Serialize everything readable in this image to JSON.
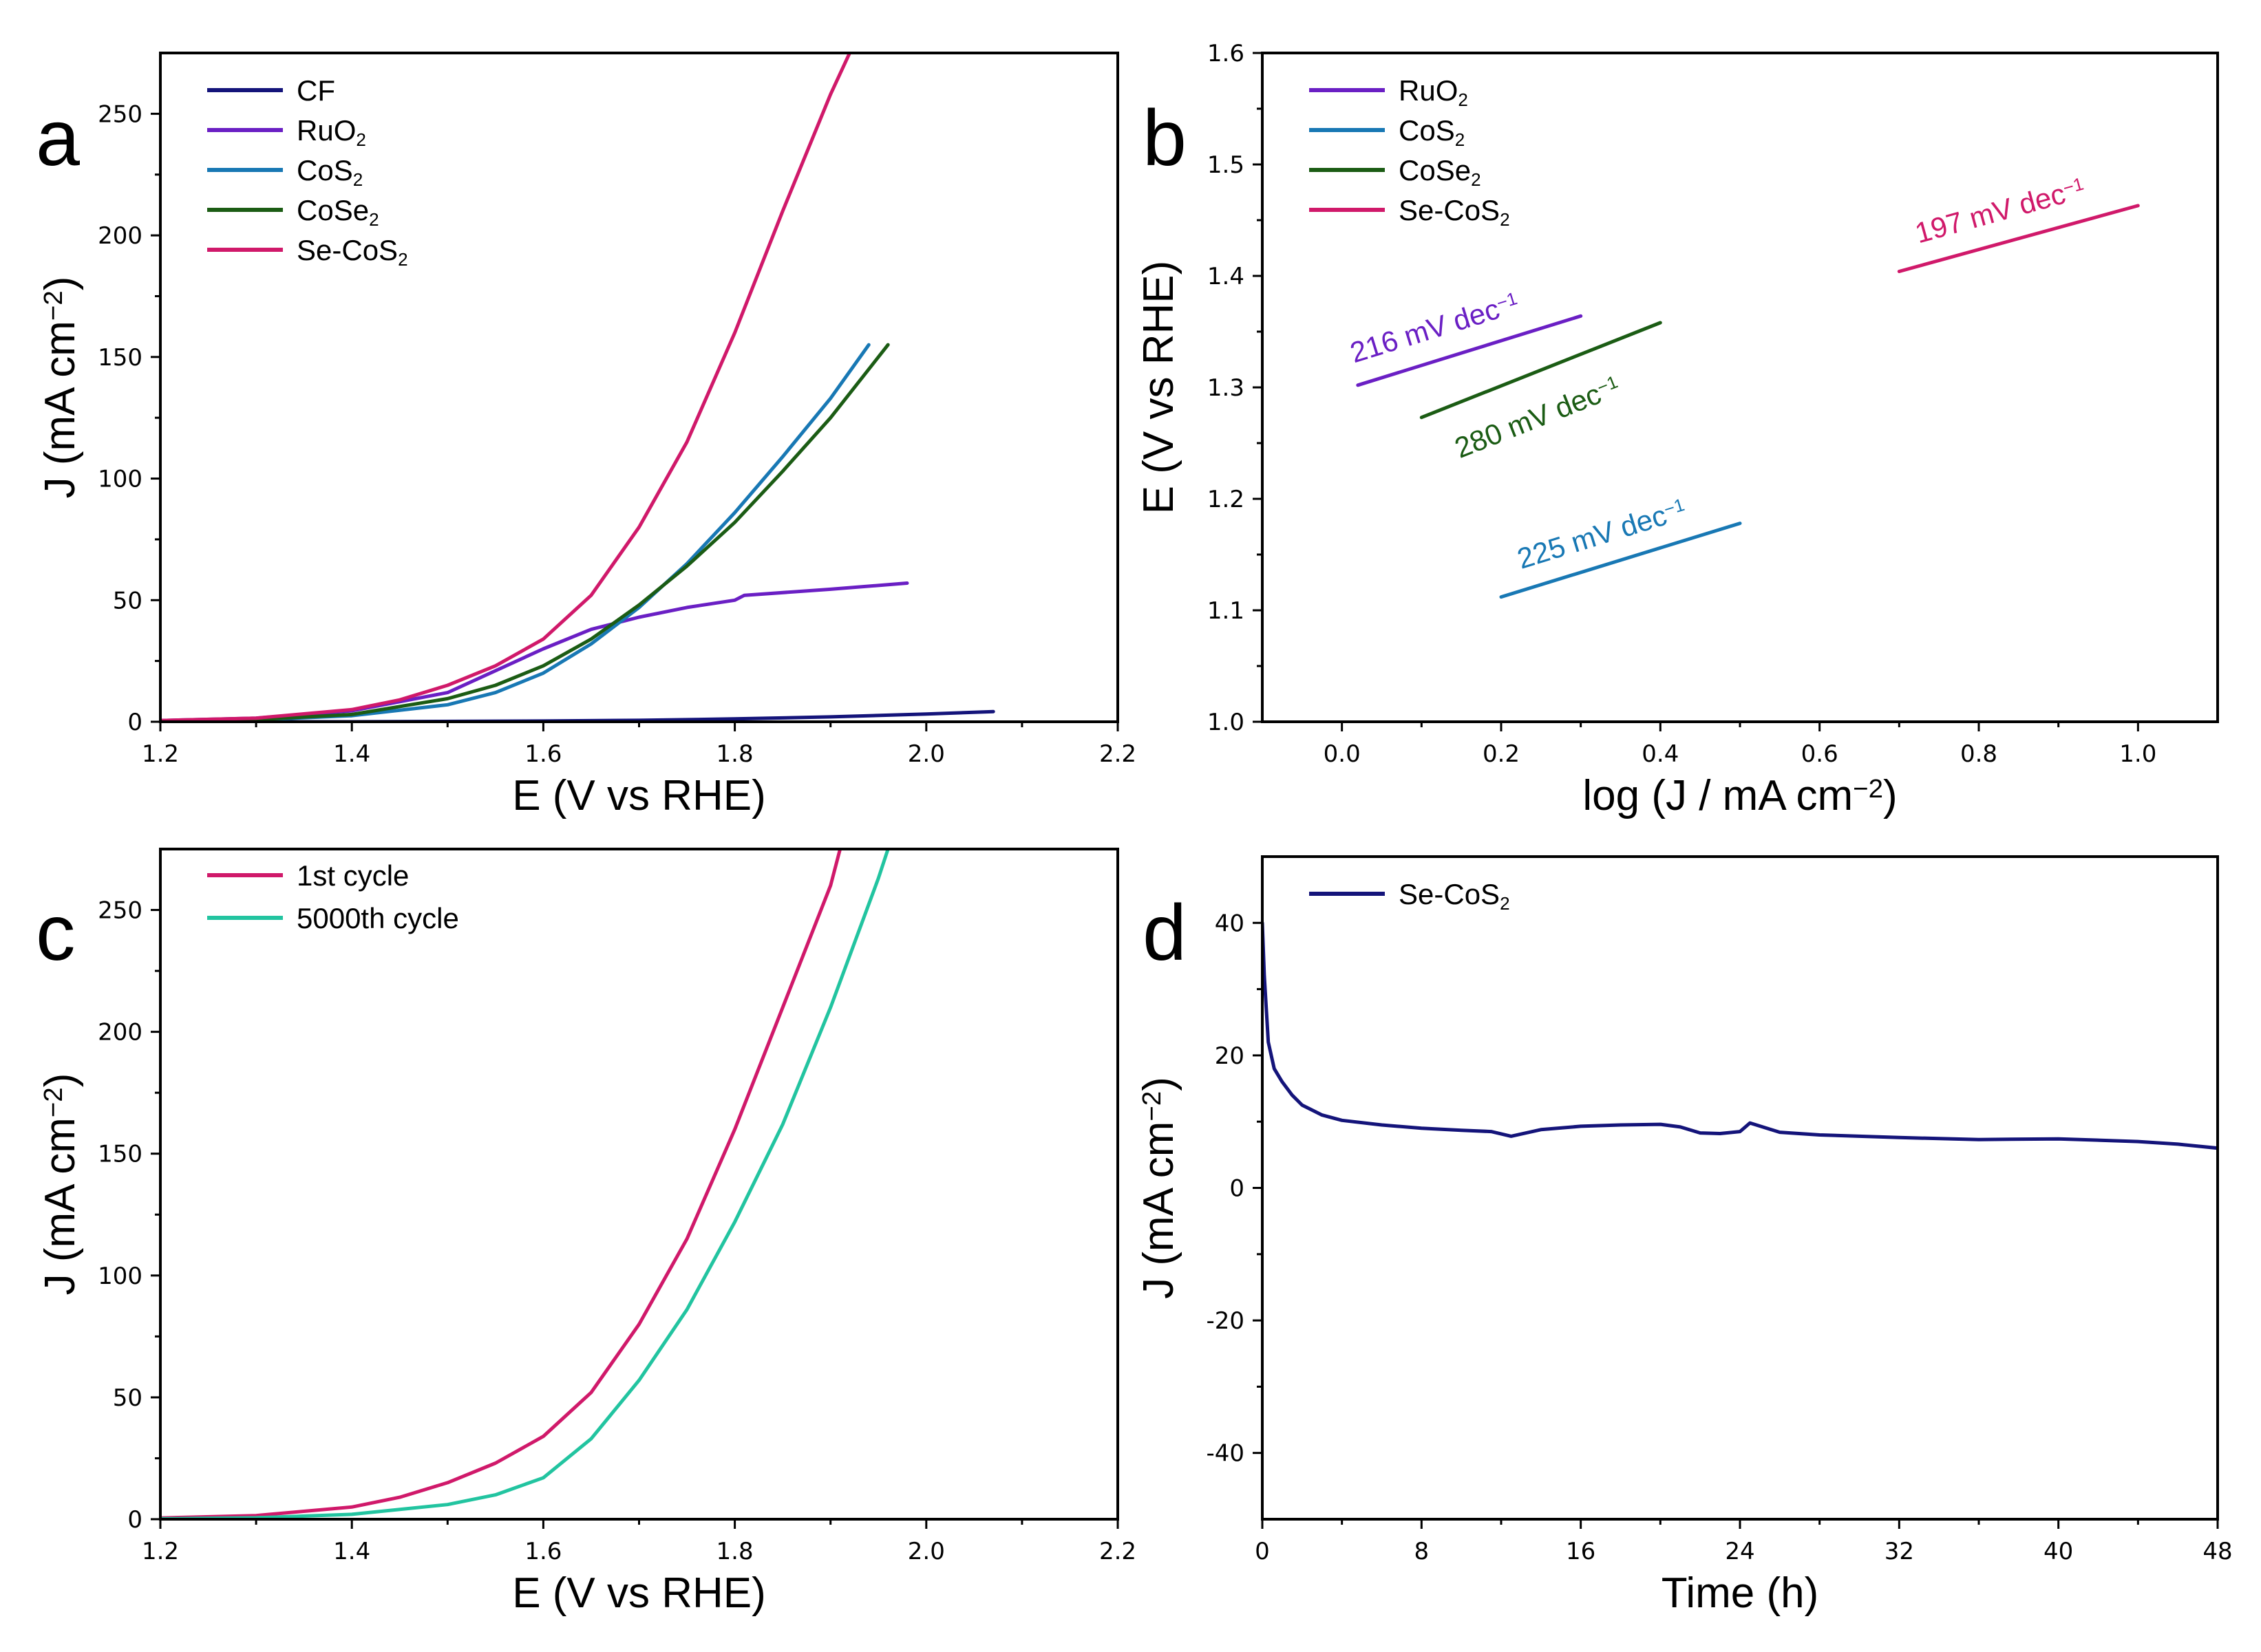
{
  "chart_data": [
    {
      "panel": "a",
      "type": "line",
      "xlabel": "E (V vs RHE)",
      "ylabel": "J (mA cm-2)",
      "ylabel_parts": [
        "J (mA cm",
        "−2",
        ")"
      ],
      "xlim": [
        1.2,
        2.2
      ],
      "ylim": [
        0,
        275
      ],
      "xticks": [
        1.2,
        1.4,
        1.6,
        1.8,
        2.0,
        2.2
      ],
      "xtick_labels": [
        "1.2",
        "1.4",
        "1.6",
        "1.8",
        "2.0",
        "2.2"
      ],
      "yticks": [
        0,
        50,
        100,
        150,
        200,
        250
      ],
      "ytick_labels": [
        "0",
        "50",
        "100",
        "150",
        "200",
        "250"
      ],
      "legend_position": "top-left",
      "series": [
        {
          "name": "CF",
          "label_parts": [
            "CF"
          ],
          "color": "#14147a",
          "x": [
            1.2,
            1.4,
            1.6,
            1.7,
            1.8,
            1.9,
            2.0,
            2.07
          ],
          "y": [
            0,
            0,
            0.3,
            0.6,
            1.2,
            2.0,
            3.2,
            4.2
          ]
        },
        {
          "name": "RuO2",
          "label_parts": [
            "RuO",
            "2"
          ],
          "color": "#6a1fc4",
          "x": [
            1.2,
            1.3,
            1.4,
            1.5,
            1.6,
            1.65,
            1.7,
            1.75,
            1.8,
            1.81,
            1.9,
            1.98
          ],
          "y": [
            0.5,
            1.5,
            4.5,
            12,
            30,
            38,
            43,
            47,
            50,
            52,
            54.5,
            57
          ]
        },
        {
          "name": "CoS2",
          "label_parts": [
            "CoS",
            "2"
          ],
          "color": "#1878b4",
          "x": [
            1.2,
            1.3,
            1.4,
            1.5,
            1.55,
            1.6,
            1.65,
            1.7,
            1.75,
            1.8,
            1.85,
            1.9,
            1.94
          ],
          "y": [
            0.3,
            0.8,
            2.5,
            7,
            12,
            20,
            32,
            47,
            65,
            86,
            109,
            133,
            155
          ]
        },
        {
          "name": "CoSe2",
          "label_parts": [
            "CoSe",
            "2"
          ],
          "color": "#1b5c14",
          "x": [
            1.2,
            1.3,
            1.4,
            1.5,
            1.55,
            1.6,
            1.65,
            1.7,
            1.75,
            1.8,
            1.85,
            1.9,
            1.96
          ],
          "y": [
            0.3,
            0.9,
            3,
            9.5,
            15,
            23,
            34,
            48,
            64,
            82,
            103,
            125,
            155
          ]
        },
        {
          "name": "Se-CoS2",
          "label_parts": [
            "Se-CoS",
            "2"
          ],
          "color": "#d0196a",
          "x": [
            1.2,
            1.3,
            1.4,
            1.45,
            1.5,
            1.55,
            1.6,
            1.65,
            1.7,
            1.75,
            1.8,
            1.85,
            1.9,
            1.92
          ],
          "y": [
            0.5,
            1.5,
            5,
            9,
            15,
            23,
            34,
            52,
            80,
            115,
            160,
            210,
            258,
            275
          ]
        }
      ]
    },
    {
      "panel": "b",
      "type": "line",
      "xlabel": "log (J / mA cm-2)",
      "xlabel_parts": [
        "log (J / mA cm",
        "−2",
        ")"
      ],
      "ylabel": "E (V vs RHE)",
      "xlim": [
        -0.1,
        1.1
      ],
      "ylim": [
        1.0,
        1.6
      ],
      "xticks": [
        0.0,
        0.2,
        0.4,
        0.6,
        0.8,
        1.0
      ],
      "xtick_labels": [
        "0.0",
        "0.2",
        "0.4",
        "0.6",
        "0.8",
        "1.0"
      ],
      "yticks": [
        1.0,
        1.1,
        1.2,
        1.3,
        1.4,
        1.5,
        1.6
      ],
      "ytick_labels": [
        "1.0",
        "1.1",
        "1.2",
        "1.3",
        "1.4",
        "1.5",
        "1.6"
      ],
      "legend_position": "top-left",
      "series": [
        {
          "name": "RuO2",
          "label_parts": [
            "RuO",
            "2"
          ],
          "color": "#6a1fc4",
          "x": [
            0.02,
            0.3
          ],
          "y": [
            1.302,
            1.364
          ],
          "annotation": "216 mV dec-1",
          "annotation_parts": [
            "216 mV dec",
            "−1"
          ],
          "annotation_at": [
            0.12,
            1.345
          ]
        },
        {
          "name": "CoS2",
          "label_parts": [
            "CoS",
            "2"
          ],
          "color": "#1878b4",
          "x": [
            0.2,
            0.5
          ],
          "y": [
            1.112,
            1.178
          ],
          "annotation": "225 mV dec-1",
          "annotation_parts": [
            "225 mV dec",
            "−1"
          ],
          "annotation_at": [
            0.33,
            1.16
          ]
        },
        {
          "name": "CoSe2",
          "label_parts": [
            "CoSe",
            "2"
          ],
          "color": "#1b5c14",
          "x": [
            0.1,
            0.4
          ],
          "y": [
            1.273,
            1.358
          ],
          "annotation": "280 mV dec-1",
          "annotation_parts": [
            "280 mV dec",
            "−1"
          ],
          "annotation_at": [
            0.25,
            1.265
          ]
        },
        {
          "name": "Se-CoS2",
          "label_parts": [
            "Se-CoS",
            "2"
          ],
          "color": "#d0196a",
          "x": [
            0.7,
            1.0
          ],
          "y": [
            1.404,
            1.463
          ],
          "annotation": "197 mV dec-1",
          "annotation_parts": [
            "197 mV dec",
            "−1"
          ],
          "annotation_at": [
            0.83,
            1.45
          ]
        }
      ]
    },
    {
      "panel": "c",
      "type": "line",
      "xlabel": "E (V vs RHE)",
      "ylabel": "J (mA cm-2)",
      "ylabel_parts": [
        "J (mA cm",
        "−2",
        ")"
      ],
      "xlim": [
        1.2,
        2.2
      ],
      "ylim": [
        0,
        275
      ],
      "xticks": [
        1.2,
        1.4,
        1.6,
        1.8,
        2.0,
        2.2
      ],
      "xtick_labels": [
        "1.2",
        "1.4",
        "1.6",
        "1.8",
        "2.0",
        "2.2"
      ],
      "yticks": [
        0,
        50,
        100,
        150,
        200,
        250
      ],
      "ytick_labels": [
        "0",
        "50",
        "100",
        "150",
        "200",
        "250"
      ],
      "legend_position": "top-left",
      "series": [
        {
          "name": "1st cycle",
          "label_parts": [
            "1st cycle"
          ],
          "color": "#d0196a",
          "x": [
            1.2,
            1.3,
            1.4,
            1.45,
            1.5,
            1.55,
            1.6,
            1.65,
            1.7,
            1.75,
            1.8,
            1.85,
            1.9,
            1.91
          ],
          "y": [
            0.5,
            1.5,
            5,
            9,
            15,
            23,
            34,
            52,
            80,
            115,
            160,
            210,
            260,
            275
          ]
        },
        {
          "name": "5000th cycle",
          "label_parts": [
            "5000th cycle"
          ],
          "color": "#22c4a0",
          "x": [
            1.2,
            1.3,
            1.4,
            1.5,
            1.55,
            1.6,
            1.65,
            1.7,
            1.75,
            1.8,
            1.85,
            1.9,
            1.95,
            1.96
          ],
          "y": [
            0.2,
            0.6,
            2,
            6,
            10,
            17,
            33,
            57,
            86,
            122,
            162,
            210,
            263,
            275
          ]
        }
      ]
    },
    {
      "panel": "d",
      "type": "line",
      "xlabel": "Time (h)",
      "ylabel": "J (mA cm-2)",
      "ylabel_parts": [
        "J (mA cm",
        "−2",
        ")"
      ],
      "xlim": [
        0,
        48
      ],
      "ylim": [
        -50,
        50
      ],
      "xticks": [
        0,
        8,
        16,
        24,
        32,
        40,
        48
      ],
      "xtick_labels": [
        "0",
        "8",
        "16",
        "24",
        "32",
        "40",
        "48"
      ],
      "yticks": [
        -40,
        -20,
        0,
        20,
        40
      ],
      "ytick_labels": [
        "-40",
        "-20",
        "0",
        "20",
        "40"
      ],
      "legend_position": "top-left",
      "series": [
        {
          "name": "Se-CoS2",
          "label_parts": [
            "Se-CoS",
            "2"
          ],
          "color": "#14147a",
          "x": [
            0,
            0.1,
            0.3,
            0.6,
            1,
            1.5,
            2,
            3,
            4,
            6,
            8,
            10,
            11.5,
            12.5,
            14,
            16,
            18,
            20,
            21,
            22,
            23,
            24,
            24.5,
            26,
            28,
            32,
            36,
            40,
            44,
            46,
            48
          ],
          "y": [
            40,
            32,
            22,
            18,
            16,
            14,
            12.5,
            11,
            10.2,
            9.5,
            9,
            8.7,
            8.5,
            7.8,
            8.8,
            9.3,
            9.5,
            9.6,
            9.2,
            8.3,
            8.2,
            8.5,
            9.8,
            8.4,
            8,
            7.6,
            7.3,
            7.4,
            7,
            6.6,
            6
          ]
        }
      ]
    }
  ]
}
